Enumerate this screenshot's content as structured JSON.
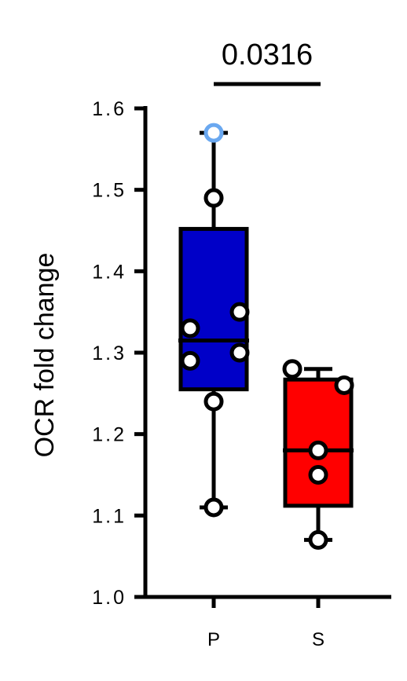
{
  "chart_data": {
    "type": "box",
    "ylabel": "OCR fold change",
    "ylim": [
      1.0,
      1.6
    ],
    "yticks": [
      "1.0",
      "1.1",
      "1.2",
      "1.3",
      "1.4",
      "1.5",
      "1.6"
    ],
    "categories": [
      "P",
      "S"
    ],
    "annotation": "0.0316",
    "groups": [
      {
        "category": "P",
        "color": "#0000c8",
        "min": 1.11,
        "q1": 1.255,
        "median": 1.315,
        "q3": 1.452,
        "max": 1.57,
        "points": [
          {
            "offset": 0.0,
            "value": 1.57,
            "color": "#6aa8f0"
          },
          {
            "offset": 0.0,
            "value": 1.49
          },
          {
            "offset": -0.5,
            "value": 1.33
          },
          {
            "offset": 0.55,
            "value": 1.35
          },
          {
            "offset": -0.5,
            "value": 1.29
          },
          {
            "offset": 0.55,
            "value": 1.3
          },
          {
            "offset": 0.0,
            "value": 1.24
          },
          {
            "offset": 0.0,
            "value": 1.11
          }
        ]
      },
      {
        "category": "S",
        "color": "#ff0000",
        "min": 1.07,
        "q1": 1.112,
        "median": 1.18,
        "q3": 1.267,
        "max": 1.28,
        "points": [
          {
            "offset": -0.55,
            "value": 1.28
          },
          {
            "offset": 0.55,
            "value": 1.26
          },
          {
            "offset": 0.0,
            "value": 1.18
          },
          {
            "offset": 0.0,
            "value": 1.15
          },
          {
            "offset": 0.0,
            "value": 1.07
          }
        ]
      }
    ]
  }
}
